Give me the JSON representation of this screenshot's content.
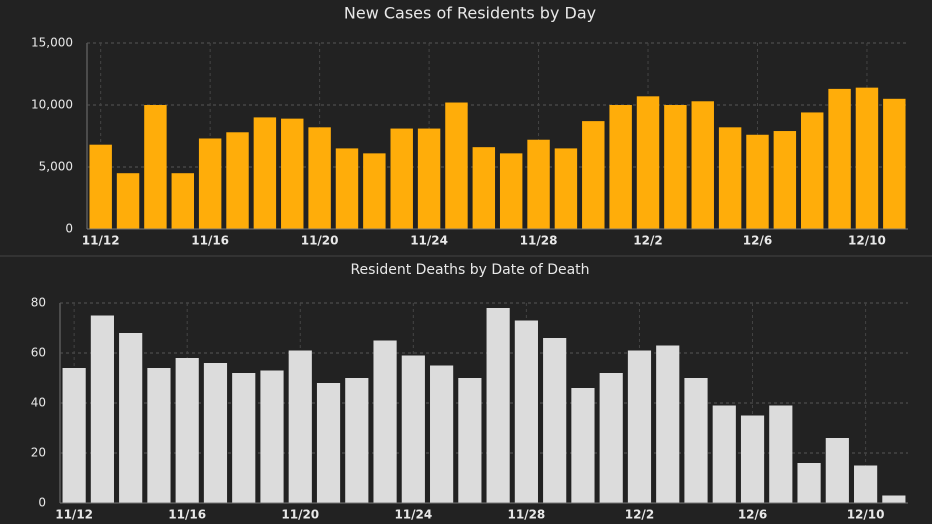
{
  "chart_data": [
    {
      "type": "bar",
      "title": "New Cases of Residents by Day",
      "categories": [
        "11/12",
        null,
        null,
        null,
        "11/16",
        null,
        null,
        null,
        "11/20",
        null,
        null,
        null,
        "11/24",
        null,
        null,
        null,
        "11/28",
        null,
        null,
        null,
        "12/2",
        null,
        null,
        null,
        "12/6",
        null,
        null,
        null,
        "12/10",
        null
      ],
      "values": [
        6800,
        4500,
        10000,
        4500,
        7300,
        7800,
        9000,
        8900,
        8200,
        6500,
        6100,
        8100,
        8100,
        10200,
        6600,
        6100,
        7200,
        6500,
        8700,
        10000,
        10700,
        10000,
        10300,
        8200,
        7600,
        7900,
        9400,
        11300,
        11400,
        10500
      ],
      "color": "#ffad0a",
      "ylim": [
        0,
        15000
      ],
      "yticks": [
        0,
        {
          "value": 5000,
          "label": "5,000"
        },
        {
          "value": 10000,
          "label": "10,000"
        },
        {
          "value": 15000,
          "label": "15,000"
        }
      ],
      "grid": true
    },
    {
      "type": "bar",
      "title": "Resident Deaths by Date of Death",
      "categories": [
        "11/12",
        null,
        null,
        null,
        "11/16",
        null,
        null,
        null,
        "11/20",
        null,
        null,
        null,
        "11/24",
        null,
        null,
        null,
        "11/28",
        null,
        null,
        null,
        "12/2",
        null,
        null,
        null,
        "12/6",
        null,
        null,
        null,
        "12/10",
        null
      ],
      "values": [
        54,
        75,
        68,
        54,
        58,
        56,
        52,
        53,
        61,
        48,
        50,
        65,
        59,
        55,
        50,
        78,
        73,
        66,
        46,
        52,
        61,
        63,
        50,
        39,
        35,
        39,
        16,
        26,
        15,
        3
      ],
      "color": "#dcdcdc",
      "ylim": [
        0,
        80
      ],
      "yticks": [
        0,
        20,
        40,
        60,
        80
      ],
      "grid": true
    }
  ]
}
